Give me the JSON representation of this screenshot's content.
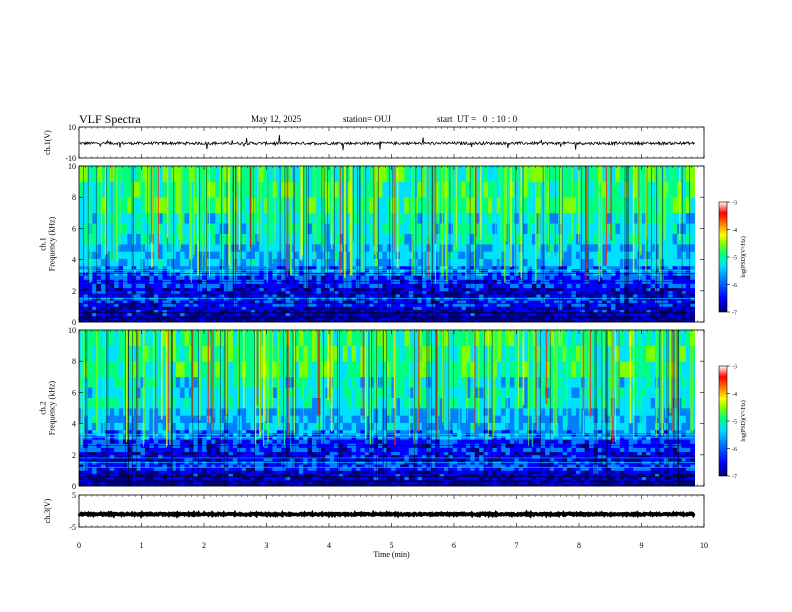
{
  "header": {
    "title": "VLF Spectra",
    "date": "May 12, 2025",
    "station": "station= OUJ",
    "start": "start  UT =   0  : 10 : 0"
  },
  "colors": {
    "colormap": [
      "#00007a",
      "#0000ff",
      "#0080ff",
      "#00e0ff",
      "#00ff80",
      "#80ff00",
      "#ffff00",
      "#ff8000",
      "#ff0000",
      "#a00000",
      "#ffffff"
    ],
    "trace": "#000000"
  },
  "chart_data": [
    {
      "type": "line",
      "name": "waveform-ch1",
      "ylabel": "ch.1(V)",
      "ylim": [
        -10,
        10
      ],
      "yticks": [
        "10",
        "-10"
      ],
      "xlim": [
        0,
        10
      ],
      "baseline": -0.5,
      "noise_amplitude": 0.9,
      "end": 9.85
    },
    {
      "type": "heatmap",
      "name": "spectrogram-ch1",
      "ylabel": "ch.1\nFrequency (kHz)",
      "ylim": [
        0,
        10
      ],
      "yticks": [
        "0",
        "2",
        "4",
        "6",
        "8",
        "10"
      ],
      "xlim": [
        0,
        10
      ],
      "end": 9.85,
      "colorbar": {
        "label": "log(PSD)(V²/Hz)",
        "range": [
          -7,
          -3
        ],
        "ticks": [
          "-3",
          "-4",
          "-5",
          "-6",
          "-7"
        ]
      }
    },
    {
      "type": "heatmap",
      "name": "spectrogram-ch2",
      "ylabel": "ch.2\nFrequency (kHz)",
      "ylim": [
        0,
        10
      ],
      "yticks": [
        "0",
        "2",
        "4",
        "6",
        "8",
        "10"
      ],
      "xlim": [
        0,
        10
      ],
      "end": 9.85,
      "colorbar": {
        "label": "log(PSD)(V²/Hz)",
        "range": [
          -7,
          -3
        ],
        "ticks": [
          "-3",
          "-4",
          "-5",
          "-6",
          "-7"
        ]
      }
    },
    {
      "type": "line",
      "name": "waveform-ch3",
      "ylabel": "ch.3(V)",
      "ylim": [
        -5,
        5
      ],
      "yticks": [
        "5",
        "-5"
      ],
      "xlim": [
        0,
        10
      ],
      "baseline": -1.0,
      "noise_amplitude": 0.25,
      "end": 9.85
    }
  ],
  "xaxis": {
    "label": "Time (min)",
    "ticks": [
      "0",
      "1",
      "2",
      "3",
      "4",
      "5",
      "6",
      "7",
      "8",
      "9",
      "10"
    ]
  }
}
